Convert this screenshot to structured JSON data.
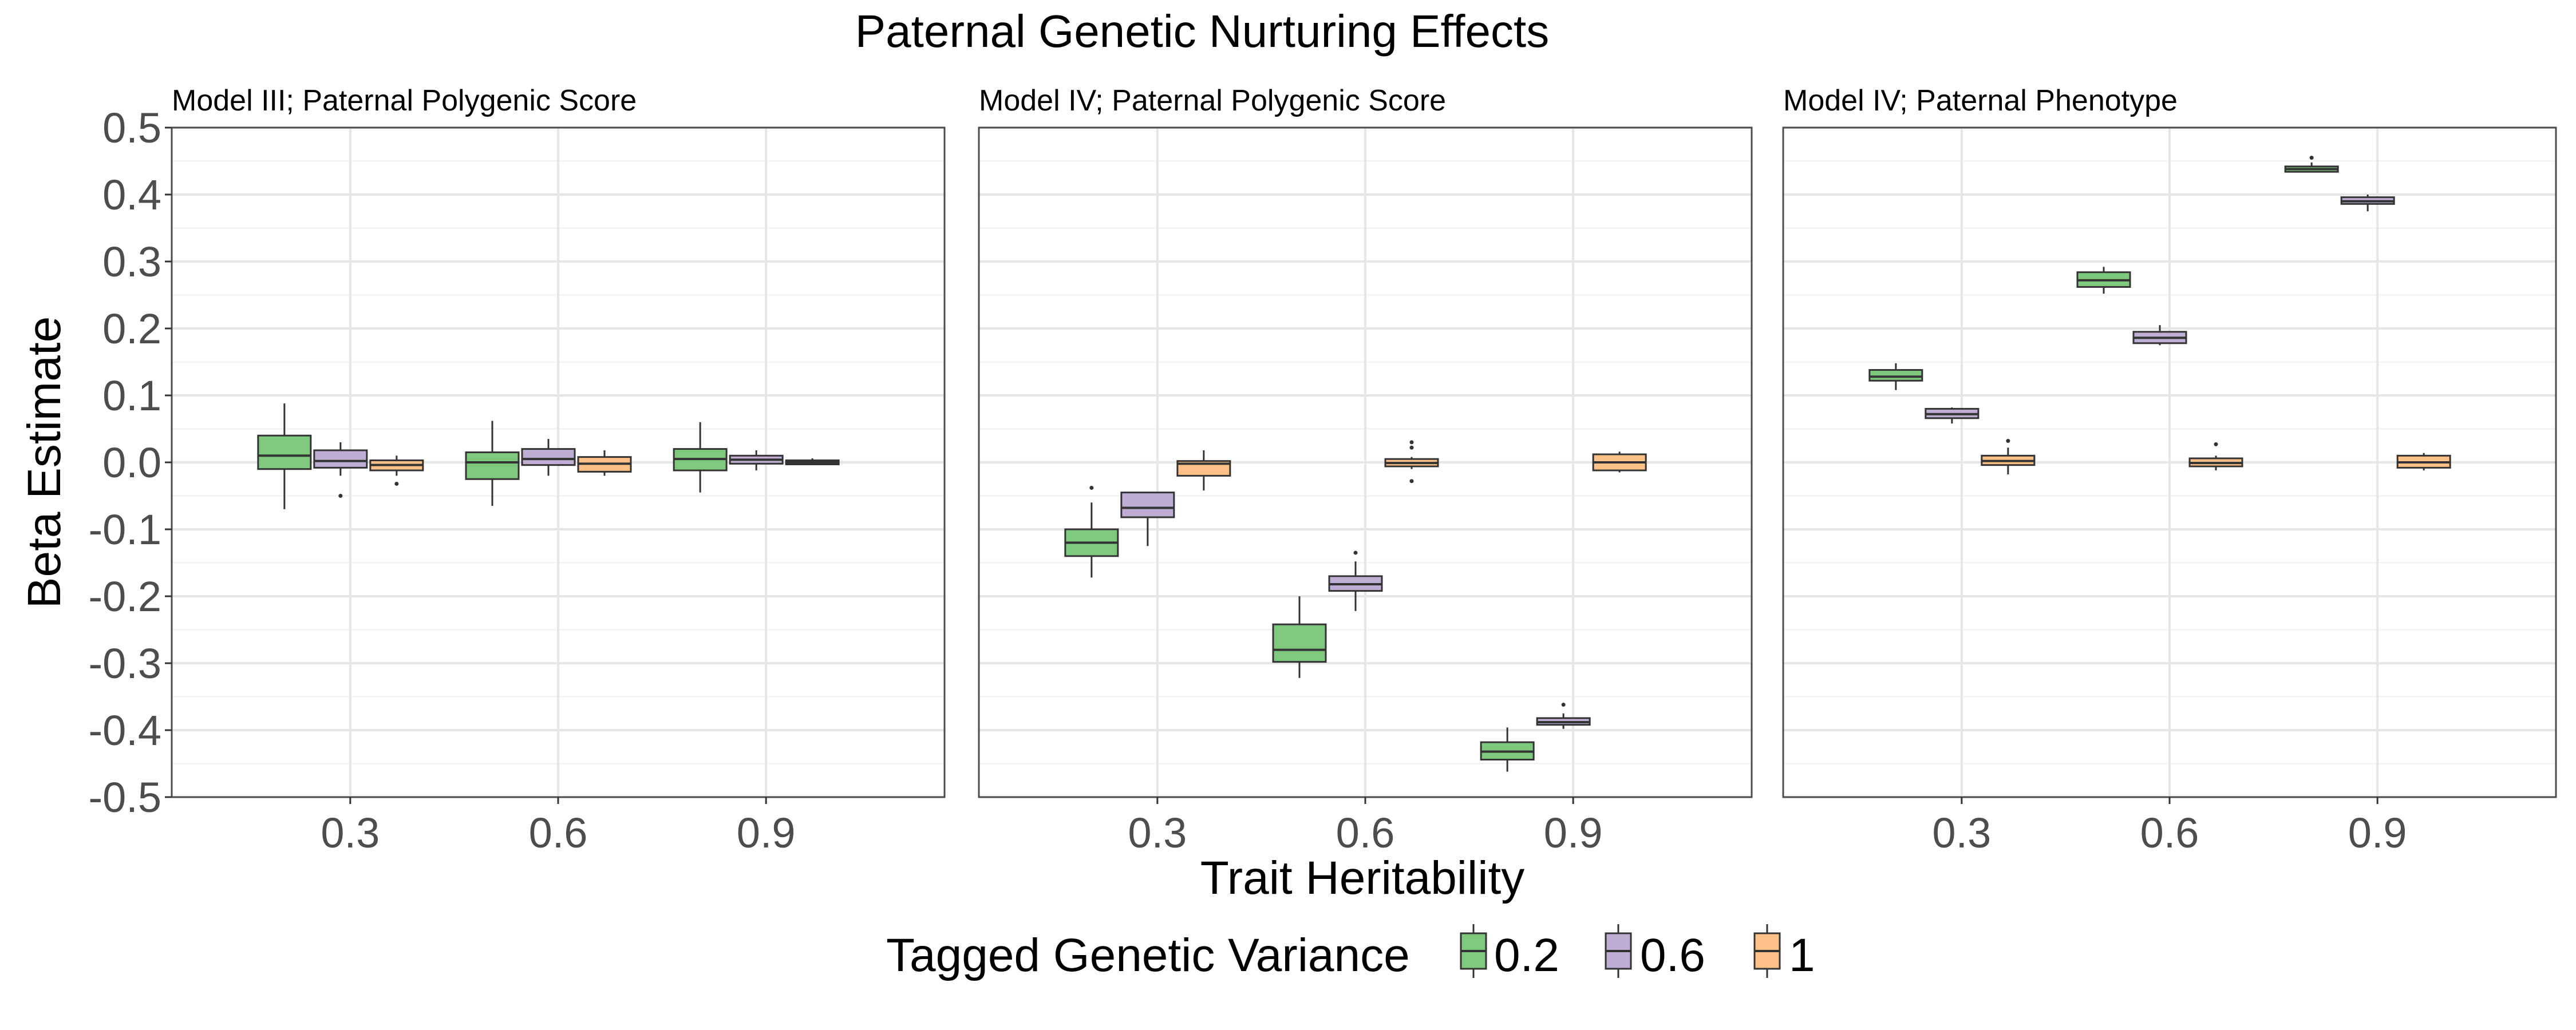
{
  "chart_data": {
    "type": "boxplot",
    "title": "Paternal Genetic Nurturing Effects",
    "xlabel": "Trait Heritability",
    "ylabel": "Beta Estimate",
    "ylim": [
      -0.5,
      0.5
    ],
    "y_ticks": [
      "-0.5",
      "-0.4",
      "-0.3",
      "-0.2",
      "-0.1",
      "0.0",
      "0.1",
      "0.2",
      "0.3",
      "0.4",
      "0.5"
    ],
    "categories": [
      "0.3",
      "0.6",
      "0.9"
    ],
    "grid": true,
    "legend": {
      "title": "Tagged Genetic Variance",
      "position": "bottom",
      "entries": [
        {
          "label": "0.2",
          "color": "#7fc97f"
        },
        {
          "label": "0.6",
          "color": "#beaed4"
        },
        {
          "label": "1",
          "color": "#fdc086"
        }
      ]
    },
    "panels": [
      {
        "strip_label": "Model III; Paternal Polygenic Score",
        "series": [
          {
            "name": "0.2",
            "boxes": [
              {
                "x": "0.3",
                "min": -0.07,
                "q1": -0.01,
                "median": 0.01,
                "q3": 0.04,
                "max": 0.088,
                "outliers": []
              },
              {
                "x": "0.6",
                "min": -0.065,
                "q1": -0.025,
                "median": 0.0,
                "q3": 0.015,
                "max": 0.062,
                "outliers": []
              },
              {
                "x": "0.9",
                "min": -0.045,
                "q1": -0.012,
                "median": 0.005,
                "q3": 0.02,
                "max": 0.06,
                "outliers": []
              }
            ]
          },
          {
            "name": "0.6",
            "boxes": [
              {
                "x": "0.3",
                "min": -0.02,
                "q1": -0.008,
                "median": 0.002,
                "q3": 0.018,
                "max": 0.03,
                "outliers": [
                  -0.05
                ]
              },
              {
                "x": "0.6",
                "min": -0.02,
                "q1": -0.004,
                "median": 0.005,
                "q3": 0.02,
                "max": 0.035,
                "outliers": []
              },
              {
                "x": "0.9",
                "min": -0.012,
                "q1": -0.002,
                "median": 0.004,
                "q3": 0.01,
                "max": 0.018,
                "outliers": []
              }
            ]
          },
          {
            "name": "1",
            "boxes": [
              {
                "x": "0.3",
                "min": -0.02,
                "q1": -0.012,
                "median": -0.004,
                "q3": 0.003,
                "max": 0.01,
                "outliers": [
                  -0.032
                ]
              },
              {
                "x": "0.6",
                "min": -0.02,
                "q1": -0.014,
                "median": -0.002,
                "q3": 0.008,
                "max": 0.018,
                "outliers": []
              },
              {
                "x": "0.9",
                "min": -0.004,
                "q1": -0.003,
                "median": 0.0,
                "q3": 0.003,
                "max": 0.006,
                "outliers": []
              }
            ]
          }
        ]
      },
      {
        "strip_label": "Model IV; Paternal Polygenic Score",
        "series": [
          {
            "name": "0.2",
            "boxes": [
              {
                "x": "0.3",
                "min": -0.172,
                "q1": -0.14,
                "median": -0.12,
                "q3": -0.1,
                "max": -0.06,
                "outliers": [
                  -0.038
                ]
              },
              {
                "x": "0.6",
                "min": -0.322,
                "q1": -0.298,
                "median": -0.28,
                "q3": -0.242,
                "max": -0.2,
                "outliers": []
              },
              {
                "x": "0.9",
                "min": -0.462,
                "q1": -0.444,
                "median": -0.432,
                "q3": -0.418,
                "max": -0.396,
                "outliers": []
              }
            ]
          },
          {
            "name": "0.6",
            "boxes": [
              {
                "x": "0.3",
                "min": -0.125,
                "q1": -0.082,
                "median": -0.068,
                "q3": -0.045,
                "max": -0.045,
                "outliers": []
              },
              {
                "x": "0.6",
                "min": -0.222,
                "q1": -0.192,
                "median": -0.182,
                "q3": -0.17,
                "max": -0.148,
                "outliers": [
                  -0.135
                ]
              },
              {
                "x": "0.9",
                "min": -0.398,
                "q1": -0.392,
                "median": -0.388,
                "q3": -0.382,
                "max": -0.375,
                "outliers": [
                  -0.362
                ]
              }
            ]
          },
          {
            "name": "1",
            "boxes": [
              {
                "x": "0.3",
                "min": -0.042,
                "q1": -0.02,
                "median": -0.002,
                "q3": 0.002,
                "max": 0.018,
                "outliers": []
              },
              {
                "x": "0.6",
                "min": -0.01,
                "q1": -0.006,
                "median": -0.001,
                "q3": 0.005,
                "max": 0.008,
                "outliers": [
                  0.022,
                  0.03,
                  -0.028
                ]
              },
              {
                "x": "0.9",
                "min": -0.015,
                "q1": -0.012,
                "median": 0.0,
                "q3": 0.012,
                "max": 0.016,
                "outliers": []
              }
            ]
          }
        ]
      },
      {
        "strip_label": "Model IV; Paternal Phenotype",
        "series": [
          {
            "name": "0.2",
            "boxes": [
              {
                "x": "0.3",
                "min": 0.108,
                "q1": 0.122,
                "median": 0.128,
                "q3": 0.138,
                "max": 0.148,
                "outliers": []
              },
              {
                "x": "0.6",
                "min": 0.252,
                "q1": 0.262,
                "median": 0.272,
                "q3": 0.284,
                "max": 0.292,
                "outliers": []
              },
              {
                "x": "0.9",
                "min": 0.434,
                "q1": 0.434,
                "median": 0.438,
                "q3": 0.442,
                "max": 0.448,
                "outliers": [
                  0.455
                ]
              }
            ]
          },
          {
            "name": "0.6",
            "boxes": [
              {
                "x": "0.3",
                "min": 0.058,
                "q1": 0.066,
                "median": 0.072,
                "q3": 0.08,
                "max": 0.082,
                "outliers": []
              },
              {
                "x": "0.6",
                "min": 0.175,
                "q1": 0.178,
                "median": 0.186,
                "q3": 0.195,
                "max": 0.205,
                "outliers": []
              },
              {
                "x": "0.9",
                "min": 0.375,
                "q1": 0.386,
                "median": 0.39,
                "q3": 0.396,
                "max": 0.4,
                "outliers": []
              }
            ]
          },
          {
            "name": "1",
            "boxes": [
              {
                "x": "0.3",
                "min": -0.018,
                "q1": -0.004,
                "median": 0.002,
                "q3": 0.01,
                "max": 0.022,
                "outliers": [
                  0.032
                ]
              },
              {
                "x": "0.6",
                "min": -0.012,
                "q1": -0.006,
                "median": -0.001,
                "q3": 0.006,
                "max": 0.01,
                "outliers": [
                  0.027
                ]
              },
              {
                "x": "0.9",
                "min": -0.012,
                "q1": -0.008,
                "median": 0.0,
                "q3": 0.01,
                "max": 0.014,
                "outliers": []
              }
            ]
          }
        ]
      }
    ]
  }
}
